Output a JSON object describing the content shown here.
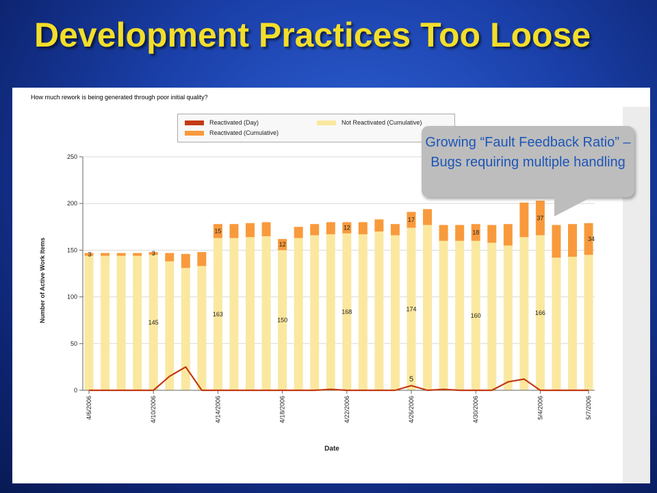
{
  "slide": {
    "title": "Development Practices Too Loose",
    "callout": "Growing “Fault Feedback Ratio” – Bugs requiring multiple handling"
  },
  "chart_data": {
    "type": "bar",
    "title": "How much rework is being generated through poor initial quality?",
    "xlabel": "Date",
    "ylabel": "Number of Active Work Items",
    "ylim": [
      0,
      250
    ],
    "yticks": [
      0,
      50,
      100,
      150,
      200,
      250
    ],
    "grid": true,
    "legend_position": "top",
    "x_tick_labels": [
      "4/6/2006",
      "4/10/2006",
      "4/14/2006",
      "4/18/2006",
      "4/22/2006",
      "4/26/2006",
      "4/30/2006",
      "5/4/2006",
      "5/7/2006"
    ],
    "x_tick_positions": [
      0,
      4,
      8,
      12,
      16,
      20,
      24,
      28,
      31
    ],
    "series": [
      {
        "name": "Not Reactivated (Cumulative)",
        "kind": "bar-stack-bottom",
        "color": "#fbe8a0",
        "values": [
          144,
          144,
          144,
          144,
          145,
          138,
          131,
          133,
          163,
          163,
          164,
          165,
          150,
          163,
          166,
          167,
          168,
          167,
          170,
          166,
          174,
          177,
          160,
          160,
          160,
          158,
          155,
          164,
          166,
          142,
          143,
          145
        ]
      },
      {
        "name": "Reactivated (Cumulative)",
        "kind": "bar-stack-top",
        "color": "#f89a3c",
        "values": [
          3,
          3,
          3,
          3,
          3,
          9,
          15,
          15,
          15,
          15,
          15,
          15,
          12,
          12,
          12,
          13,
          12,
          13,
          13,
          12,
          17,
          17,
          17,
          17,
          18,
          19,
          23,
          37,
          37,
          35,
          35,
          34
        ]
      },
      {
        "name": "Reactivated (Day)",
        "kind": "line",
        "color": "#c33a12",
        "values": [
          0,
          0,
          0,
          0,
          0,
          15,
          25,
          0,
          0,
          0,
          0,
          0,
          0,
          0,
          0,
          1,
          0,
          0,
          0,
          0,
          5,
          0,
          1,
          0,
          0,
          0,
          9,
          12,
          0,
          0,
          0,
          0
        ]
      }
    ],
    "data_labels": [
      {
        "index": 0,
        "text": "3",
        "series": "Reactivated (Cumulative)"
      },
      {
        "index": 4,
        "text": "3",
        "series": "Reactivated (Cumulative)"
      },
      {
        "index": 4,
        "text": "145",
        "series": "Not Reactivated (Cumulative)"
      },
      {
        "index": 8,
        "text": "15",
        "series": "Reactivated (Cumulative)"
      },
      {
        "index": 8,
        "text": "163",
        "series": "Not Reactivated (Cumulative)"
      },
      {
        "index": 12,
        "text": "12",
        "series": "Reactivated (Cumulative)"
      },
      {
        "index": 12,
        "text": "150",
        "series": "Not Reactivated (Cumulative)"
      },
      {
        "index": 16,
        "text": "12",
        "series": "Reactivated (Cumulative)"
      },
      {
        "index": 16,
        "text": "168",
        "series": "Not Reactivated (Cumulative)"
      },
      {
        "index": 20,
        "text": "17",
        "series": "Reactivated (Cumulative)"
      },
      {
        "index": 20,
        "text": "174",
        "series": "Not Reactivated (Cumulative)"
      },
      {
        "index": 20,
        "text": "5",
        "series": "Reactivated (Day)"
      },
      {
        "index": 24,
        "text": "18",
        "series": "Reactivated (Cumulative)"
      },
      {
        "index": 24,
        "text": "160",
        "series": "Not Reactivated (Cumulative)"
      },
      {
        "index": 28,
        "text": "37",
        "series": "Reactivated (Cumulative)"
      },
      {
        "index": 28,
        "text": "166",
        "series": "Not Reactivated (Cumulative)"
      },
      {
        "index": 31,
        "text": "34",
        "series": "Reactivated (Cumulative)"
      }
    ],
    "legend": [
      {
        "label": "Reactivated (Day)",
        "color": "#c33a12"
      },
      {
        "label": "Not Reactivated (Cumulative)",
        "color": "#fbe8a0"
      },
      {
        "label": "Reactivated (Cumulative)",
        "color": "#f89a3c"
      }
    ]
  }
}
